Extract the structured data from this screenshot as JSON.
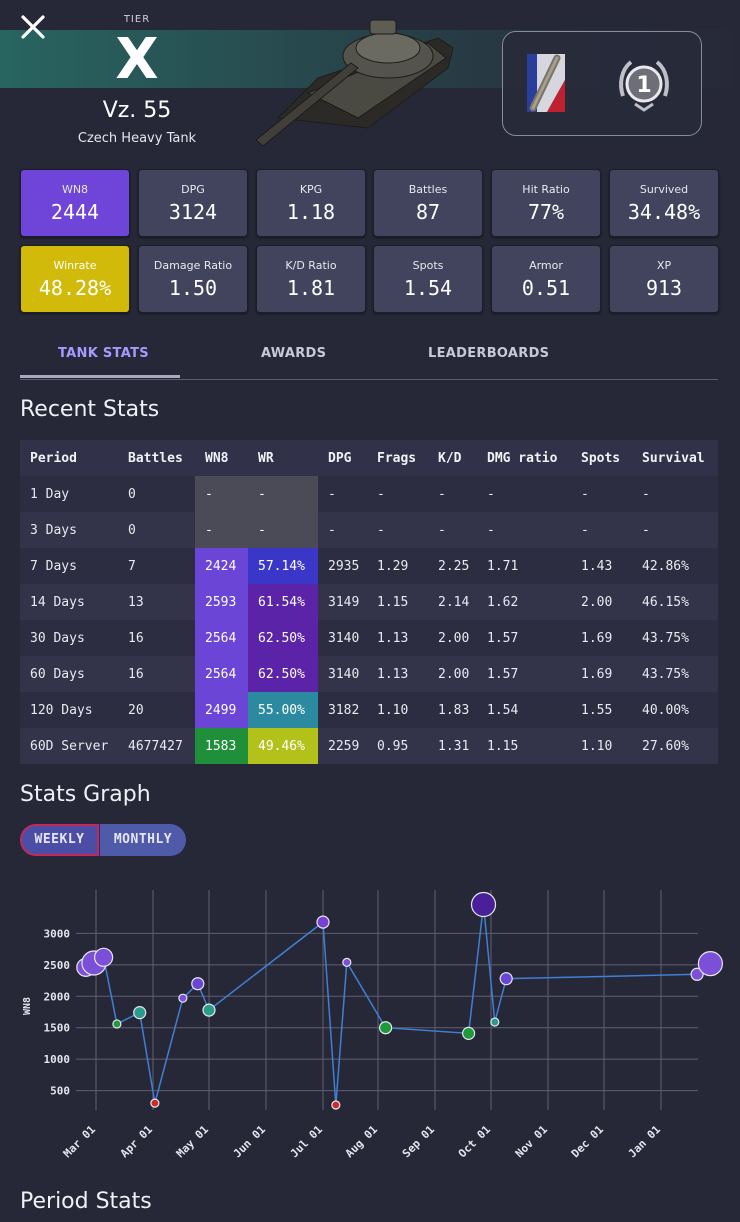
{
  "header": {
    "close_icon": "close-icon",
    "tier_label": "TIER",
    "tier_value": "X",
    "tank_name": "Vz. 55",
    "tank_type": "Czech Heavy Tank",
    "mastery_badge": "1"
  },
  "cards_row1": [
    {
      "label": "WN8",
      "value": "2444"
    },
    {
      "label": "DPG",
      "value": "3124"
    },
    {
      "label": "KPG",
      "value": "1.18"
    },
    {
      "label": "Battles",
      "value": "87"
    },
    {
      "label": "Hit Ratio",
      "value": "77%"
    },
    {
      "label": "Survived",
      "value": "34.48%"
    }
  ],
  "cards_row2": [
    {
      "label": "Winrate",
      "value": "48.28%"
    },
    {
      "label": "Damage Ratio",
      "value": "1.50"
    },
    {
      "label": "K/D Ratio",
      "value": "1.81"
    },
    {
      "label": "Spots",
      "value": "1.54"
    },
    {
      "label": "Armor",
      "value": "0.51"
    },
    {
      "label": "XP",
      "value": "913"
    }
  ],
  "tabs": [
    {
      "label": "TANK STATS"
    },
    {
      "label": "AWARDS"
    },
    {
      "label": "LEADERBOARDS"
    }
  ],
  "recent_stats": {
    "title": "Recent Stats",
    "columns": [
      "Period",
      "Battles",
      "WN8",
      "WR",
      "DPG",
      "Frags",
      "K/D",
      "DMG ratio",
      "Spots",
      "Survival"
    ],
    "rows": [
      {
        "period": "1 Day",
        "battles": "0",
        "wn8": "-",
        "wr": "-",
        "dpg": "-",
        "frags": "-",
        "kd": "-",
        "dmg": "-",
        "spots": "-",
        "survival": "-",
        "wn8_color": "#4b4b58",
        "wr_color": "#4b4b58"
      },
      {
        "period": "3 Days",
        "battles": "0",
        "wn8": "-",
        "wr": "-",
        "dpg": "-",
        "frags": "-",
        "kd": "-",
        "dmg": "-",
        "spots": "-",
        "survival": "-",
        "wn8_color": "#4b4b58",
        "wr_color": "#4b4b58"
      },
      {
        "period": "7 Days",
        "battles": "7",
        "wn8": "2424",
        "wr": "57.14%",
        "dpg": "2935",
        "frags": "1.29",
        "kd": "2.25",
        "dmg": "1.71",
        "spots": "1.43",
        "survival": "42.86%",
        "wn8_color": "#6a45d6",
        "wr_color": "#3a37c8"
      },
      {
        "period": "14 Days",
        "battles": "13",
        "wn8": "2593",
        "wr": "61.54%",
        "dpg": "3149",
        "frags": "1.15",
        "kd": "2.14",
        "dmg": "1.62",
        "spots": "2.00",
        "survival": "46.15%",
        "wn8_color": "#6a45d6",
        "wr_color": "#5a23a8"
      },
      {
        "period": "30 Days",
        "battles": "16",
        "wn8": "2564",
        "wr": "62.50%",
        "dpg": "3140",
        "frags": "1.13",
        "kd": "2.00",
        "dmg": "1.57",
        "spots": "1.69",
        "survival": "43.75%",
        "wn8_color": "#6a45d6",
        "wr_color": "#5a23a8"
      },
      {
        "period": "60 Days",
        "battles": "16",
        "wn8": "2564",
        "wr": "62.50%",
        "dpg": "3140",
        "frags": "1.13",
        "kd": "2.00",
        "dmg": "1.57",
        "spots": "1.69",
        "survival": "43.75%",
        "wn8_color": "#6a45d6",
        "wr_color": "#5a23a8"
      },
      {
        "period": "120 Days",
        "battles": "20",
        "wn8": "2499",
        "wr": "55.00%",
        "dpg": "3182",
        "frags": "1.10",
        "kd": "1.83",
        "dmg": "1.54",
        "spots": "1.55",
        "survival": "40.00%",
        "wn8_color": "#6a45d6",
        "wr_color": "#2b8aa0"
      },
      {
        "period": "60D Server",
        "battles": "4677427",
        "wn8": "1583",
        "wr": "49.46%",
        "dpg": "2259",
        "frags": "0.95",
        "kd": "1.31",
        "dmg": "1.15",
        "spots": "1.10",
        "survival": "27.60%",
        "wn8_color": "#1f8f3a",
        "wr_color": "#b3c21a"
      }
    ]
  },
  "stats_graph": {
    "title": "Stats Graph",
    "toggle": {
      "weekly": "WEEKLY",
      "monthly": "MONTHLY"
    }
  },
  "chart_data": {
    "type": "scatter",
    "ylabel": "WN8",
    "yticks": [
      500,
      1000,
      1500,
      2000,
      2500,
      3000
    ],
    "ylim": [
      0,
      3500
    ],
    "xticks": [
      "Mar 01",
      "Apr 01",
      "May 01",
      "Jun 01",
      "Jul 01",
      "Aug 01",
      "Sep 01",
      "Oct 01",
      "Nov 01",
      "Dec 01",
      "Jan 01"
    ],
    "grid": true,
    "line_color": "#3f7fd6",
    "points": [
      {
        "x": "Feb 24",
        "y": 2460,
        "color": "#7b4fd8",
        "size": 2
      },
      {
        "x": "Feb 28",
        "y": 2530,
        "color": "#7b4fd8",
        "size": 3
      },
      {
        "x": "Mar 05",
        "y": 2620,
        "color": "#7b4fd8",
        "size": 2
      },
      {
        "x": "Mar 12",
        "y": 1560,
        "color": "#1f9a3a",
        "size": 0
      },
      {
        "x": "Mar 24",
        "y": 1740,
        "color": "#2a9c8c",
        "size": 1
      },
      {
        "x": "Apr 02",
        "y": 300,
        "color": "#cc2b2b",
        "size": 0
      },
      {
        "x": "Apr 17",
        "y": 1970,
        "color": "#7b4fd8",
        "size": 0
      },
      {
        "x": "Apr 25",
        "y": 2200,
        "color": "#6a45d6",
        "size": 1
      },
      {
        "x": "May 01",
        "y": 1780,
        "color": "#2a9c8c",
        "size": 1
      },
      {
        "x": "Jul 01",
        "y": 3180,
        "color": "#7a3fd6",
        "size": 1
      },
      {
        "x": "Jul 08",
        "y": 270,
        "color": "#cc2b2b",
        "size": 0
      },
      {
        "x": "Jul 14",
        "y": 2540,
        "color": "#7b4fd8",
        "size": 0
      },
      {
        "x": "Aug 05",
        "y": 1500,
        "color": "#1f9a3a",
        "size": 1
      },
      {
        "x": "Sep 19",
        "y": 1410,
        "color": "#1f9a3a",
        "size": 1
      },
      {
        "x": "Sep 27",
        "y": 3460,
        "color": "#4a1f9a",
        "size": 3
      },
      {
        "x": "Oct 03",
        "y": 1590,
        "color": "#2a9c8c",
        "size": 0
      },
      {
        "x": "Oct 09",
        "y": 2280,
        "color": "#6a45d6",
        "size": 1
      },
      {
        "x": "Jan 20",
        "y": 2350,
        "color": "#7b4fd8",
        "size": 1
      },
      {
        "x": "Jan 27",
        "y": 2520,
        "color": "#7b4fd8",
        "size": 3
      }
    ]
  },
  "period_stats": {
    "title": "Period Stats"
  }
}
